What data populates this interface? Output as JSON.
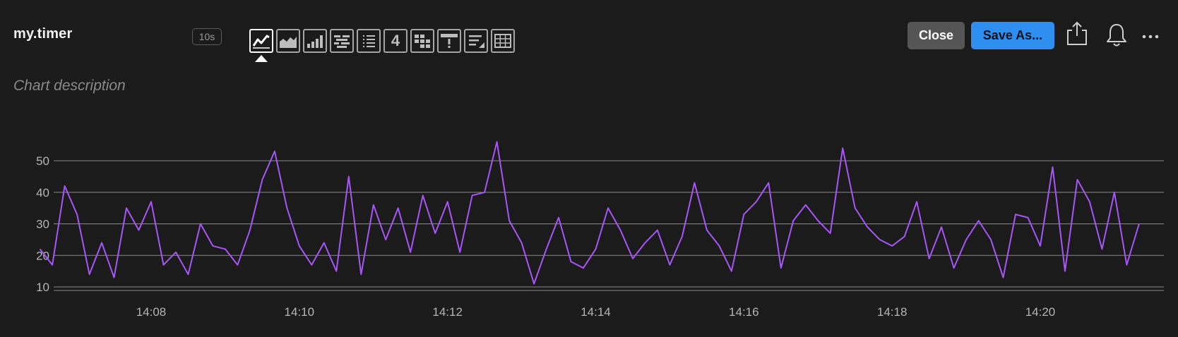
{
  "header": {
    "title": "my.timer",
    "interval": "10s",
    "close_label": "Close",
    "save_label": "Save As...",
    "description_placeholder": "Chart description"
  },
  "viz_types": [
    {
      "name": "line-chart-icon",
      "active": true
    },
    {
      "name": "area-chart-icon",
      "active": false
    },
    {
      "name": "bar-chart-icon",
      "active": false
    },
    {
      "name": "heatmap-icon",
      "active": false
    },
    {
      "name": "list-icon",
      "active": false
    },
    {
      "name": "single-value-icon",
      "label": "4",
      "active": false
    },
    {
      "name": "event-feed-icon",
      "active": false
    },
    {
      "name": "alert-icon",
      "active": false
    },
    {
      "name": "text-note-icon",
      "active": false
    },
    {
      "name": "table-icon",
      "active": false
    }
  ],
  "colors": {
    "background": "#1b1b1b",
    "series": "#a855f7",
    "grid": "#8a8a8a",
    "save_button": "#2e8ff0",
    "close_button": "#555555"
  },
  "chart_data": {
    "type": "line",
    "title": "",
    "xlabel": "",
    "ylabel": "",
    "ylim": [
      10,
      50
    ],
    "grid": true,
    "x_ticks": [
      "14:08",
      "14:10",
      "14:12",
      "14:14",
      "14:16",
      "14:18",
      "14:20"
    ],
    "y_ticks": [
      10,
      20,
      30,
      40,
      50
    ],
    "series": [
      {
        "x": [
          "14:06:30",
          "14:06:40",
          "14:06:50",
          "14:07:00",
          "14:07:10",
          "14:07:20",
          "14:07:30",
          "14:07:40",
          "14:07:50",
          "14:08:00",
          "14:08:10",
          "14:08:20",
          "14:08:30",
          "14:08:40",
          "14:08:50",
          "14:09:00",
          "14:09:10",
          "14:09:20",
          "14:09:30",
          "14:09:40",
          "14:09:50",
          "14:10:00",
          "14:10:10",
          "14:10:20",
          "14:10:30",
          "14:10:40",
          "14:10:50",
          "14:11:00",
          "14:11:10",
          "14:11:20",
          "14:11:30",
          "14:11:40",
          "14:11:50",
          "14:12:00",
          "14:12:10",
          "14:12:20",
          "14:12:30",
          "14:12:40",
          "14:12:50",
          "14:13:00",
          "14:13:10",
          "14:13:20",
          "14:13:30",
          "14:13:40",
          "14:13:50",
          "14:14:00",
          "14:14:10",
          "14:14:20",
          "14:14:30",
          "14:14:40",
          "14:14:50",
          "14:15:00",
          "14:15:10",
          "14:15:20",
          "14:15:30",
          "14:15:40",
          "14:15:50",
          "14:16:00",
          "14:16:10",
          "14:16:20",
          "14:16:30",
          "14:16:40",
          "14:16:50",
          "14:17:00",
          "14:17:10",
          "14:17:20",
          "14:17:30",
          "14:17:40",
          "14:17:50",
          "14:18:00",
          "14:18:10",
          "14:18:20",
          "14:18:30",
          "14:18:40",
          "14:18:50",
          "14:19:00",
          "14:19:10",
          "14:19:20",
          "14:19:30",
          "14:19:40",
          "14:19:50",
          "14:20:00",
          "14:20:10",
          "14:20:20",
          "14:20:30",
          "14:20:40",
          "14:20:50",
          "14:21:00",
          "14:21:10",
          "14:21:20"
        ],
        "values": [
          22,
          17,
          42,
          33,
          14,
          24,
          13,
          35,
          28,
          37,
          17,
          21,
          14,
          30,
          23,
          22,
          17,
          28,
          44,
          53,
          35,
          23,
          17,
          24,
          15,
          45,
          14,
          36,
          25,
          35,
          21,
          39,
          27,
          37,
          21,
          39,
          40,
          56,
          31,
          24,
          11,
          22,
          32,
          18,
          16,
          22,
          35,
          28,
          19,
          24,
          28,
          17,
          26,
          43,
          28,
          23,
          15,
          33,
          37,
          43,
          16,
          31,
          36,
          31,
          27,
          54,
          35,
          29,
          25,
          23,
          26,
          37,
          19,
          29,
          16,
          25,
          31,
          25,
          13,
          33,
          32,
          23,
          48,
          15,
          44,
          37,
          22,
          40,
          17,
          30
        ]
      }
    ]
  }
}
